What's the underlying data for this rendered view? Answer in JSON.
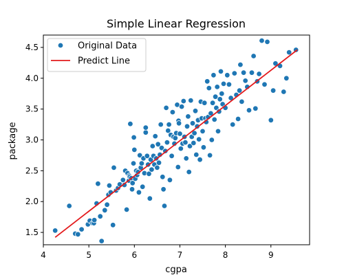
{
  "chart_data": {
    "type": "scatter",
    "title": "Simple Linear Regression",
    "xlabel": "cgpa",
    "ylabel": "package",
    "xlim": [
      4.0,
      9.85
    ],
    "ylim": [
      1.3,
      4.7
    ],
    "xticks": [
      4,
      5,
      6,
      7,
      8,
      9
    ],
    "yticks": [
      1.5,
      2.0,
      2.5,
      3.0,
      3.5,
      4.0,
      4.5
    ],
    "xtick_labels": [
      "4",
      "5",
      "6",
      "7",
      "8",
      "9"
    ],
    "ytick_labels": [
      "1.5",
      "2.0",
      "2.5",
      "3.0",
      "3.5",
      "4.0",
      "4.5"
    ],
    "grid": false,
    "legend": {
      "placement": "top-left",
      "entries": [
        "Original Data",
        "Predict Line"
      ]
    },
    "series": [
      {
        "name": "Original Data",
        "kind": "scatter",
        "color": "#1f77b4",
        "points": [
          [
            4.26,
            1.53
          ],
          [
            4.57,
            1.93
          ],
          [
            4.7,
            1.48
          ],
          [
            4.76,
            1.47
          ],
          [
            4.84,
            1.55
          ],
          [
            4.98,
            1.63
          ],
          [
            5.02,
            1.69
          ],
          [
            5.08,
            1.65
          ],
          [
            5.11,
            1.65
          ],
          [
            5.12,
            1.7
          ],
          [
            5.17,
            1.97
          ],
          [
            5.2,
            2.29
          ],
          [
            5.25,
            1.76
          ],
          [
            5.28,
            1.36
          ],
          [
            5.35,
            1.86
          ],
          [
            5.4,
            1.95
          ],
          [
            5.43,
            2.11
          ],
          [
            5.45,
            2.26
          ],
          [
            5.48,
            2.15
          ],
          [
            5.53,
            1.62
          ],
          [
            5.55,
            2.55
          ],
          [
            5.6,
            2.18
          ],
          [
            5.64,
            2.22
          ],
          [
            5.68,
            2.28
          ],
          [
            5.75,
            2.35
          ],
          [
            5.78,
            2.27
          ],
          [
            5.8,
            2.5
          ],
          [
            5.83,
            1.87
          ],
          [
            5.85,
            2.46
          ],
          [
            5.88,
            2.34
          ],
          [
            5.89,
            2.42
          ],
          [
            5.9,
            2.4
          ],
          [
            5.91,
            3.26
          ],
          [
            5.93,
            2.38
          ],
          [
            5.95,
            2.2
          ],
          [
            5.96,
            2.3
          ],
          [
            5.98,
            2.62
          ],
          [
            5.99,
            3.04
          ],
          [
            6.0,
            2.84
          ],
          [
            6.02,
            2.37
          ],
          [
            6.04,
            2.5
          ],
          [
            6.06,
            2.43
          ],
          [
            6.08,
            2.48
          ],
          [
            6.1,
            2.15
          ],
          [
            6.12,
            2.75
          ],
          [
            6.14,
            2.55
          ],
          [
            6.16,
            2.62
          ],
          [
            6.18,
            2.24
          ],
          [
            6.2,
            2.7
          ],
          [
            6.22,
            2.46
          ],
          [
            6.25,
            3.12
          ],
          [
            6.25,
            3.2
          ],
          [
            6.28,
            2.74
          ],
          [
            6.3,
            2.6
          ],
          [
            6.32,
            2.45
          ],
          [
            6.34,
            2.05
          ],
          [
            6.36,
            2.68
          ],
          [
            6.38,
            2.52
          ],
          [
            6.4,
            2.9
          ],
          [
            6.42,
            2.74
          ],
          [
            6.44,
            2.6
          ],
          [
            6.46,
            3.06
          ],
          [
            6.48,
            2.7
          ],
          [
            6.5,
            2.55
          ],
          [
            6.52,
            2.93
          ],
          [
            6.54,
            2.63
          ],
          [
            6.56,
            2.76
          ],
          [
            6.58,
            3.25
          ],
          [
            6.6,
            2.87
          ],
          [
            6.62,
            2.4
          ],
          [
            6.64,
            2.2
          ],
          [
            6.66,
            1.93
          ],
          [
            6.68,
            2.82
          ],
          [
            6.7,
            3.52
          ],
          [
            6.72,
            2.96
          ],
          [
            6.74,
            3.15
          ],
          [
            6.76,
            3.25
          ],
          [
            6.78,
            2.35
          ],
          [
            6.8,
            3.08
          ],
          [
            6.82,
            2.74
          ],
          [
            6.84,
            3.45
          ],
          [
            6.86,
            3.05
          ],
          [
            6.88,
            2.94
          ],
          [
            6.9,
            3.03
          ],
          [
            6.92,
            3.11
          ],
          [
            6.94,
            3.57
          ],
          [
            6.96,
            2.56
          ],
          [
            6.97,
            3.31
          ],
          [
            6.98,
            3.27
          ],
          [
            7.0,
            3.1
          ],
          [
            7.02,
            2.86
          ],
          [
            7.04,
            3.54
          ],
          [
            7.06,
            2.94
          ],
          [
            7.08,
            3.63
          ],
          [
            7.1,
            3.05
          ],
          [
            7.12,
            2.96
          ],
          [
            7.14,
            2.7
          ],
          [
            7.16,
            3.22
          ],
          [
            7.18,
            3.38
          ],
          [
            7.2,
            2.48
          ],
          [
            7.22,
            2.9
          ],
          [
            7.24,
            3.64
          ],
          [
            7.26,
            3.05
          ],
          [
            7.28,
            3.27
          ],
          [
            7.3,
            2.95
          ],
          [
            7.32,
            3.11
          ],
          [
            7.34,
            3.47
          ],
          [
            7.36,
            2.76
          ],
          [
            7.38,
            3.22
          ],
          [
            7.4,
            3.32
          ],
          [
            7.42,
            3.01
          ],
          [
            7.44,
            2.68
          ],
          [
            7.46,
            3.62
          ],
          [
            7.48,
            3.35
          ],
          [
            7.5,
            3.14
          ],
          [
            7.52,
            2.88
          ],
          [
            7.54,
            3.6
          ],
          [
            7.56,
            3.35
          ],
          [
            7.58,
            3.29
          ],
          [
            7.6,
            3.95
          ],
          [
            7.62,
            3.37
          ],
          [
            7.64,
            3.84
          ],
          [
            7.66,
            2.75
          ],
          [
            7.68,
            3.43
          ],
          [
            7.7,
            3.0
          ],
          [
            7.72,
            3.6
          ],
          [
            7.74,
            4.05
          ],
          [
            7.76,
            3.33
          ],
          [
            7.78,
            3.7
          ],
          [
            7.8,
            3.52
          ],
          [
            7.82,
            3.86
          ],
          [
            7.84,
            3.14
          ],
          [
            7.86,
            3.46
          ],
          [
            7.88,
            3.66
          ],
          [
            7.9,
            4.11
          ],
          [
            7.92,
            3.75
          ],
          [
            7.94,
            3.58
          ],
          [
            7.96,
            3.91
          ],
          [
            8.0,
            3.52
          ],
          [
            8.04,
            4.05
          ],
          [
            8.08,
            3.9
          ],
          [
            8.12,
            3.68
          ],
          [
            8.16,
            3.25
          ],
          [
            8.2,
            4.08
          ],
          [
            8.24,
            3.73
          ],
          [
            8.28,
            3.34
          ],
          [
            8.31,
            3.8
          ],
          [
            8.33,
            4.22
          ],
          [
            8.36,
            3.62
          ],
          [
            8.4,
            4.09
          ],
          [
            8.44,
            3.96
          ],
          [
            8.48,
            3.86
          ],
          [
            8.52,
            3.48
          ],
          [
            8.58,
            4.09
          ],
          [
            8.62,
            4.36
          ],
          [
            8.66,
            3.51
          ],
          [
            8.7,
            3.95
          ],
          [
            8.74,
            4.07
          ],
          [
            8.8,
            4.61
          ],
          [
            8.86,
            3.9
          ],
          [
            8.92,
            4.59
          ],
          [
            9.0,
            3.32
          ],
          [
            9.05,
            3.8
          ],
          [
            9.1,
            4.24
          ],
          [
            9.2,
            4.2
          ],
          [
            9.28,
            3.78
          ],
          [
            9.34,
            4.0
          ],
          [
            9.4,
            4.42
          ],
          [
            9.55,
            4.46
          ]
        ]
      },
      {
        "name": "Predict Line",
        "kind": "line",
        "color": "#e31a1c",
        "x": [
          4.26,
          9.58
        ],
        "y": [
          1.42,
          4.46
        ]
      }
    ]
  }
}
